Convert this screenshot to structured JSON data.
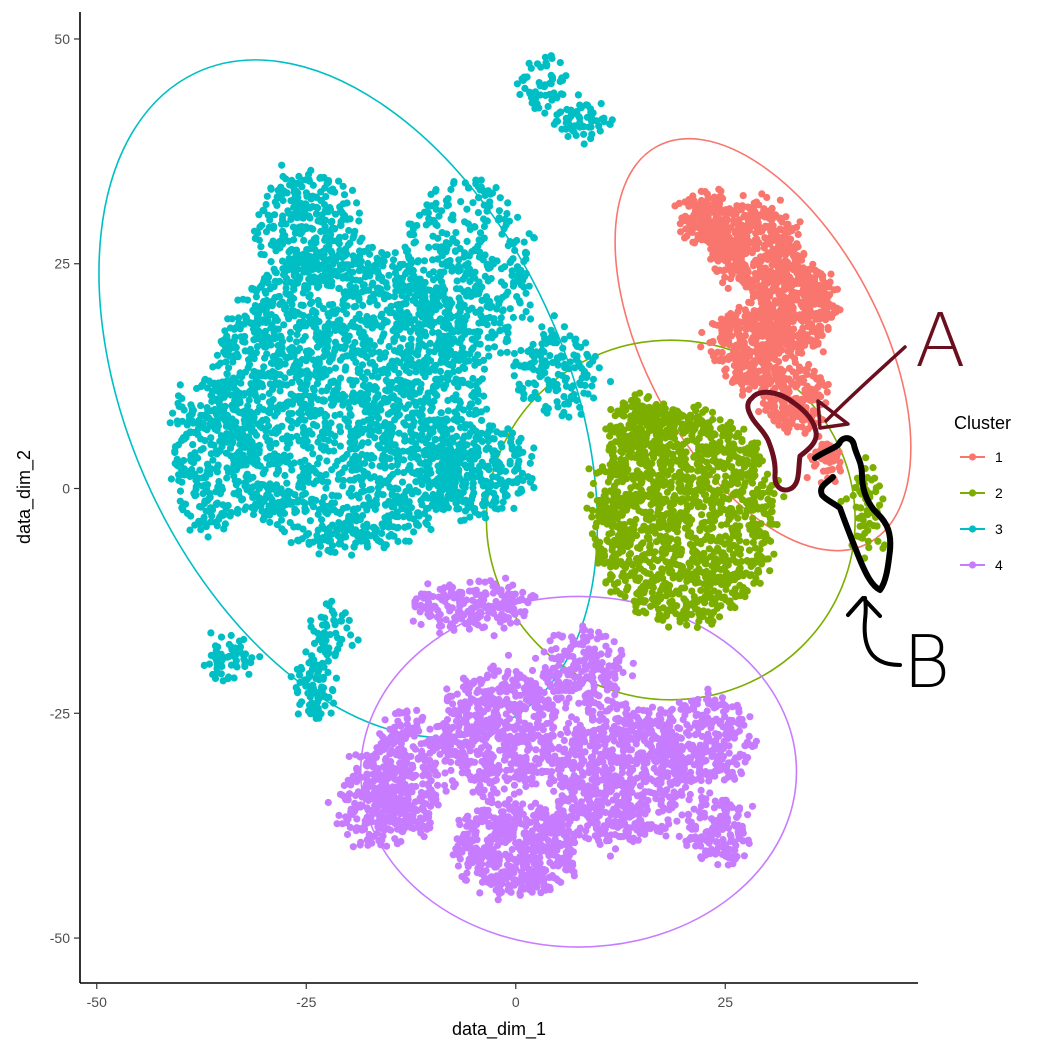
{
  "chart_data": {
    "type": "scatter",
    "title": "",
    "xlabel": "data_dim_1",
    "ylabel": "data_dim_2",
    "xlim": [
      -52,
      48
    ],
    "ylim": [
      -55,
      53
    ],
    "xticks": [
      -50,
      -25,
      0,
      25
    ],
    "yticks": [
      -50,
      -25,
      0,
      25,
      50
    ],
    "xtick_labels": [
      "-50",
      "-25",
      "0",
      "25"
    ],
    "ytick_labels": [
      "-50",
      "-25",
      "0",
      "25",
      "50"
    ],
    "grid": false,
    "legend": {
      "title": "Cluster",
      "placement": "right"
    },
    "series": [
      {
        "name": "1",
        "color": "#F8766D",
        "ellipse": {
          "center": [
            29.5,
            16
          ],
          "half_widths": [
            14,
            25
          ],
          "tilt_deg": -28
        },
        "blobs": [
          [
            28.5,
            27,
            5,
            5,
            400
          ],
          [
            33,
            20,
            5,
            5,
            400
          ],
          [
            28,
            16,
            4.5,
            4.5,
            300
          ],
          [
            33,
            10,
            4,
            3.5,
            200
          ],
          [
            23,
            30,
            3,
            3,
            150
          ],
          [
            37,
            3,
            2,
            2,
            40
          ]
        ]
      },
      {
        "name": "2",
        "color": "#7CAE00",
        "ellipse": {
          "center": [
            18.5,
            -3.5
          ],
          "half_widths": [
            22,
            20
          ],
          "tilt_deg": 0
        },
        "blobs": [
          [
            20,
            -3,
            11,
            12,
            1400
          ],
          [
            15,
            7,
            4,
            3,
            150
          ],
          [
            42,
            -2.5,
            1.5,
            5,
            60
          ]
        ]
      },
      {
        "name": "3",
        "color": "#00BFC4",
        "ellipse": {
          "center": [
            -20,
            10
          ],
          "half_widths": [
            26,
            40
          ],
          "tilt_deg": -25
        },
        "blobs": [
          [
            -20,
            10,
            16,
            17,
            2200
          ],
          [
            -6,
            24,
            8,
            10,
            400
          ],
          [
            -5,
            2,
            7,
            5,
            300
          ],
          [
            -36,
            4,
            5,
            9,
            300
          ],
          [
            -25,
            29,
            6,
            6,
            300
          ],
          [
            5,
            13,
            5,
            5,
            150
          ],
          [
            3,
            45,
            3,
            3,
            60
          ],
          [
            8,
            41,
            3,
            2,
            60
          ],
          [
            -34,
            -19,
            3,
            2,
            60
          ],
          [
            -24,
            -22,
            2,
            4,
            80
          ],
          [
            -22,
            -16,
            2,
            3,
            50
          ]
        ]
      },
      {
        "name": "4",
        "color": "#C77CFF",
        "ellipse": {
          "center": [
            7.5,
            -31.5
          ],
          "half_widths": [
            26,
            19.5
          ],
          "tilt_deg": 0
        },
        "blobs": [
          [
            -2,
            -27,
            7,
            7,
            600
          ],
          [
            12,
            -32,
            8,
            8,
            700
          ],
          [
            0,
            -40,
            7,
            5,
            500
          ],
          [
            -13,
            -32,
            4,
            7,
            300
          ],
          [
            22,
            -28,
            6,
            5,
            300
          ],
          [
            -5,
            -13,
            7,
            2.5,
            200
          ],
          [
            -17,
            -35,
            4,
            5,
            200
          ],
          [
            8,
            -20,
            5,
            4,
            200
          ],
          [
            24,
            -38,
            4,
            4,
            150
          ]
        ]
      }
    ],
    "annotations": [
      {
        "text": "A",
        "color": "#6B0F1F"
      },
      {
        "text": "B",
        "color": "#000000"
      }
    ]
  }
}
